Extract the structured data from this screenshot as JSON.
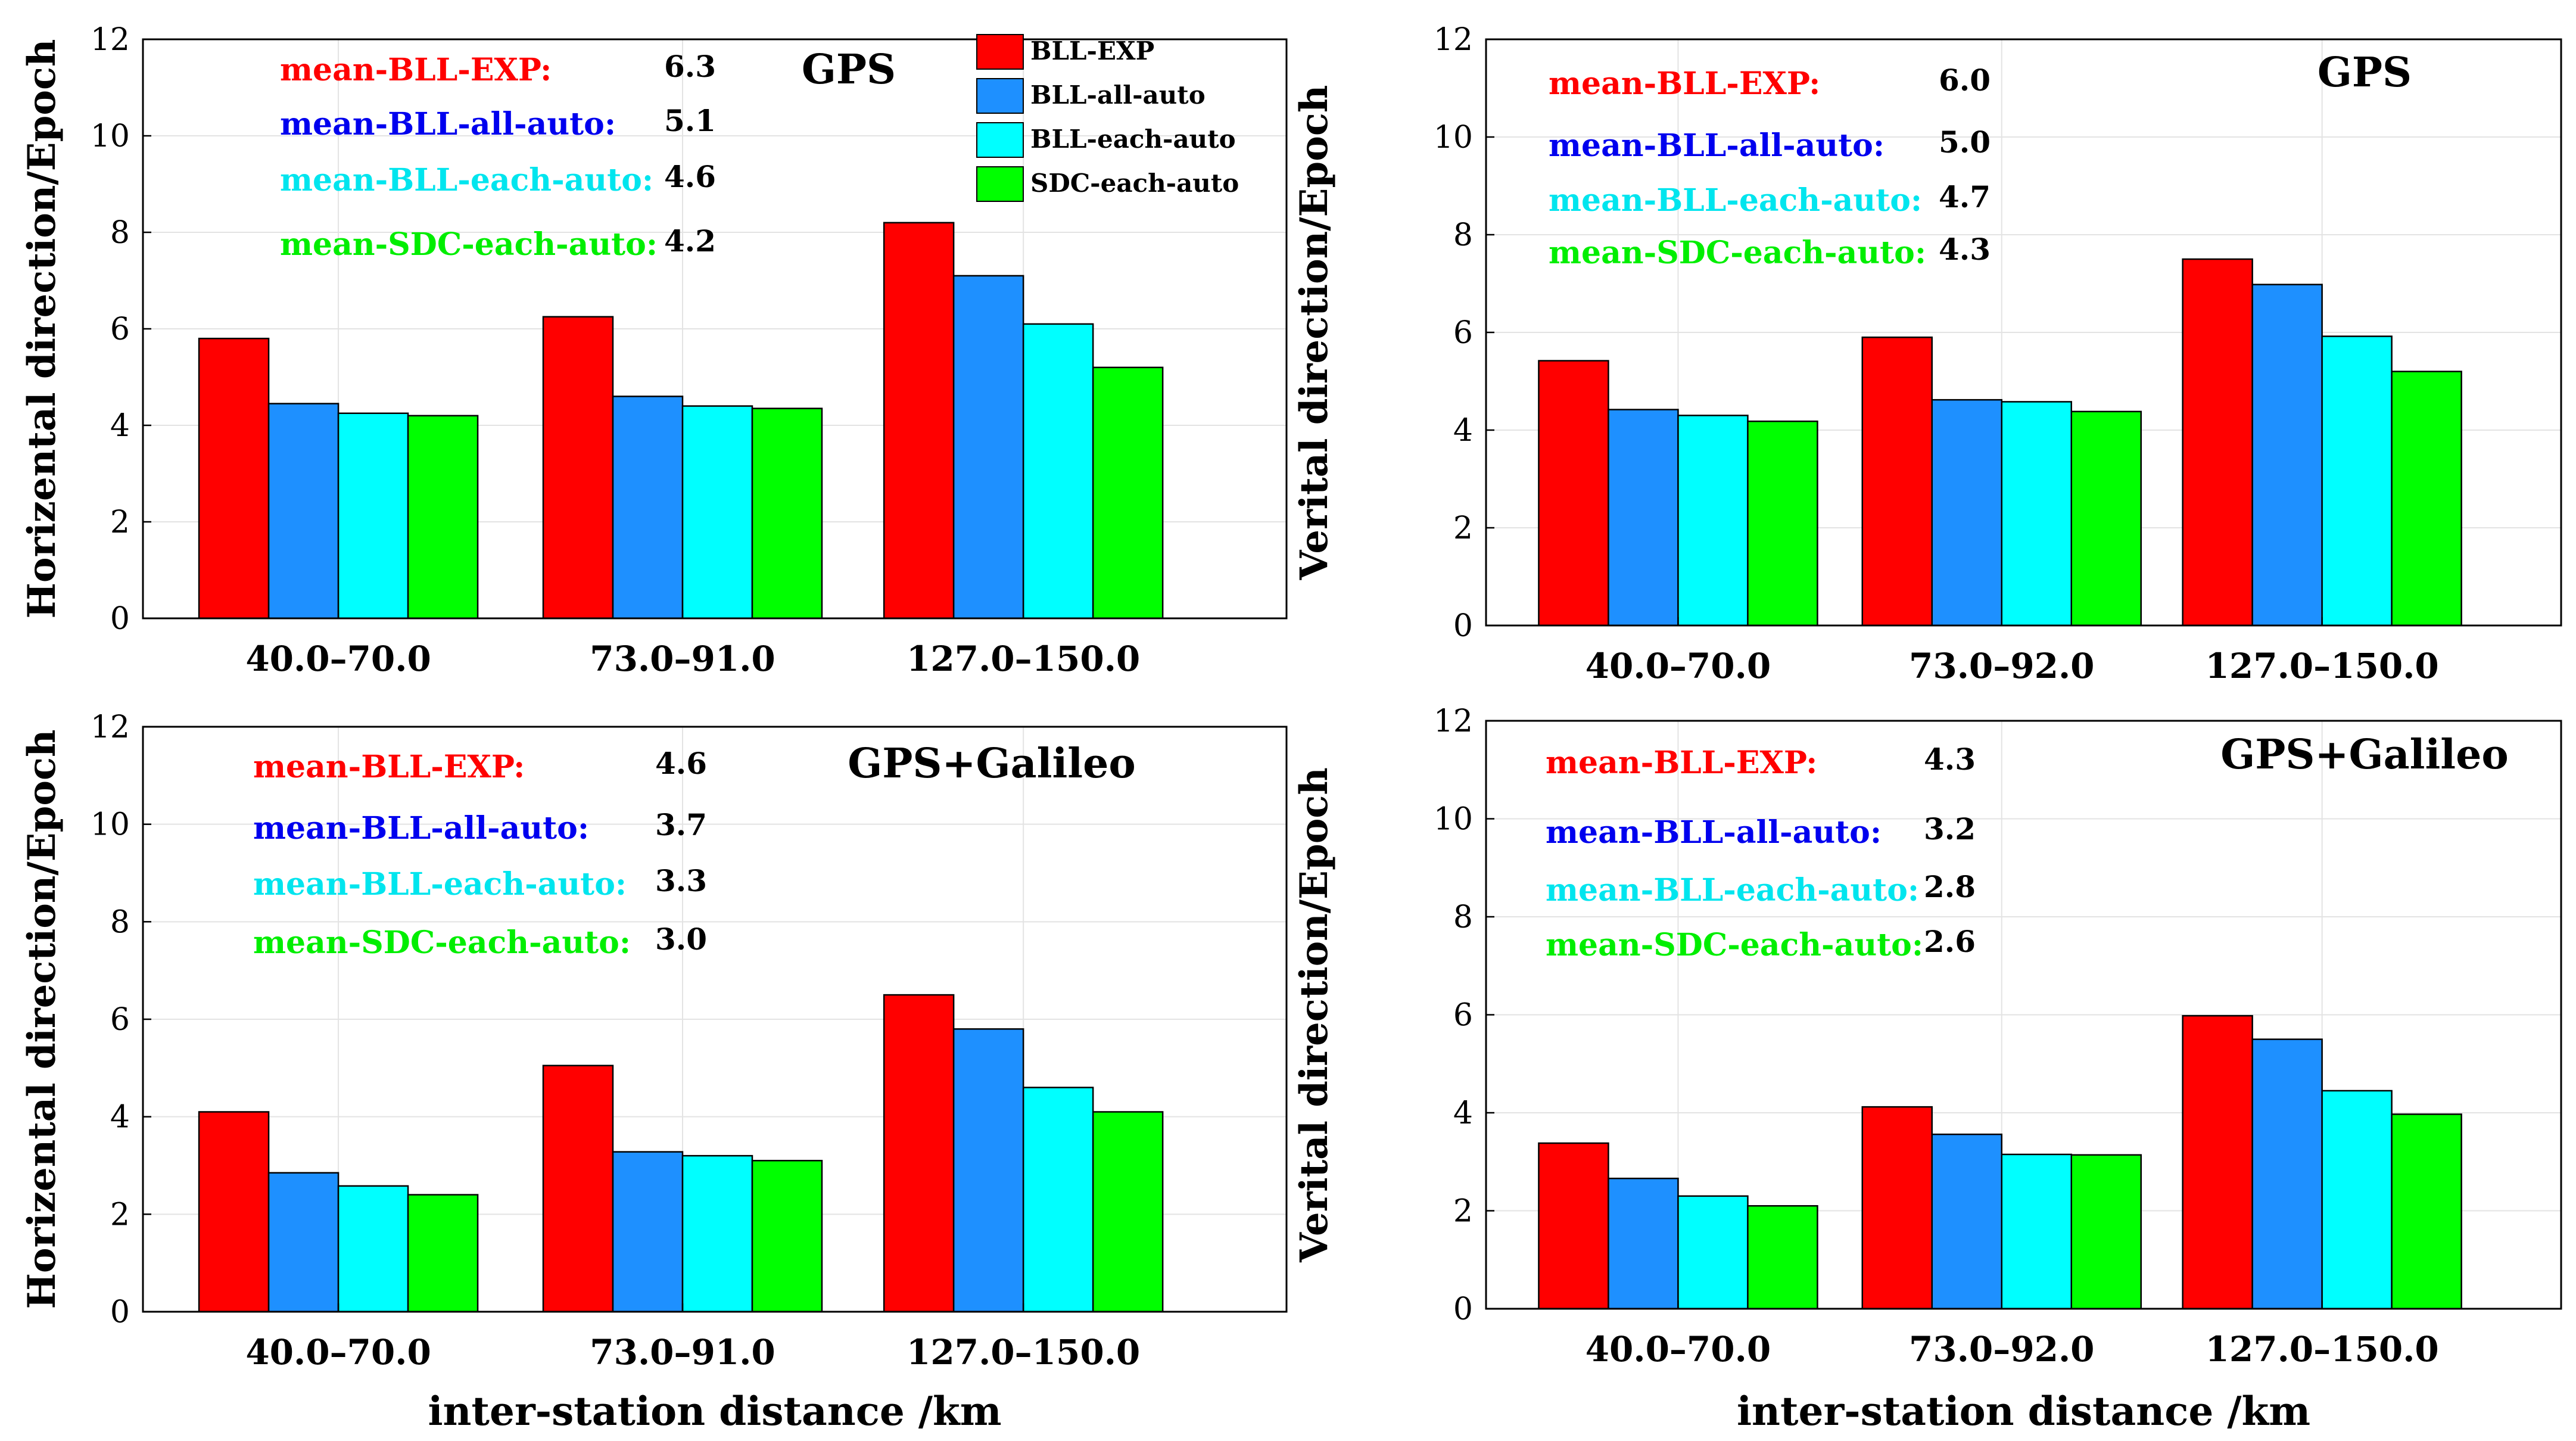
{
  "shared_xlabel": "inter-station distance /km",
  "legend": [
    {
      "label": "BLL-EXP",
      "color": "#ff0000"
    },
    {
      "label": "BLL-all-auto",
      "color": "#1e90ff"
    },
    {
      "label": "BLL-each-auto",
      "color": "#00ffff"
    },
    {
      "label": "SDC-each-auto",
      "color": "#00ff00"
    }
  ],
  "mean_colors": [
    "#ff0000",
    "#0000ee",
    "#00e5ee",
    "#00ee00"
  ],
  "chart_data": [
    {
      "type": "bar",
      "title": "GPS",
      "ylabel": "Horizental direction/Epoch",
      "xlabel": "",
      "ylim": [
        0,
        12
      ],
      "yticks": [
        "0",
        "2",
        "4",
        "6",
        "8",
        "10",
        "12"
      ],
      "categories": [
        "40.0–70.0",
        "73.0–91.0",
        "127.0–150.0"
      ],
      "series": [
        {
          "name": "BLL-EXP",
          "values": [
            5.8,
            6.25,
            8.2
          ]
        },
        {
          "name": "BLL-all-auto",
          "values": [
            4.45,
            4.6,
            7.1
          ]
        },
        {
          "name": "BLL-each-auto",
          "values": [
            4.25,
            4.4,
            6.1
          ]
        },
        {
          "name": "SDC-each-auto",
          "values": [
            4.2,
            4.35,
            5.2
          ]
        }
      ],
      "means": [
        {
          "label": "mean-BLL-EXP:",
          "value": "6.3"
        },
        {
          "label": "mean-BLL-all-auto:",
          "value": "5.1"
        },
        {
          "label": "mean-BLL-each-auto:",
          "value": "4.6"
        },
        {
          "label": "mean-SDC-each-auto:",
          "value": "4.2"
        }
      ]
    },
    {
      "type": "bar",
      "title": "GPS",
      "ylabel": "Verital direction/Epoch",
      "xlabel": "",
      "ylim": [
        0,
        12
      ],
      "yticks": [
        "0",
        "2",
        "4",
        "6",
        "8",
        "10",
        "12"
      ],
      "categories": [
        "40.0–70.0",
        "73.0–92.0",
        "127.0–150.0"
      ],
      "series": [
        {
          "name": "BLL-EXP",
          "values": [
            5.42,
            5.9,
            7.5
          ]
        },
        {
          "name": "BLL-all-auto",
          "values": [
            4.42,
            4.62,
            6.98
          ]
        },
        {
          "name": "BLL-each-auto",
          "values": [
            4.3,
            4.58,
            5.92
          ]
        },
        {
          "name": "SDC-each-auto",
          "values": [
            4.18,
            4.38,
            5.2
          ]
        }
      ],
      "means": [
        {
          "label": "mean-BLL-EXP:",
          "value": "6.0"
        },
        {
          "label": "mean-BLL-all-auto:",
          "value": "5.0"
        },
        {
          "label": "mean-BLL-each-auto:",
          "value": "4.7"
        },
        {
          "label": "mean-SDC-each-auto:",
          "value": "4.3"
        }
      ]
    },
    {
      "type": "bar",
      "title": "GPS+Galileo",
      "ylabel": "Horizental direction/Epoch",
      "xlabel": "inter-station distance /km",
      "ylim": [
        0,
        12
      ],
      "yticks": [
        "0",
        "2",
        "4",
        "6",
        "8",
        "10",
        "12"
      ],
      "categories": [
        "40.0–70.0",
        "73.0–91.0",
        "127.0–150.0"
      ],
      "series": [
        {
          "name": "BLL-EXP",
          "values": [
            4.1,
            5.05,
            6.5
          ]
        },
        {
          "name": "BLL-all-auto",
          "values": [
            2.85,
            3.28,
            5.8
          ]
        },
        {
          "name": "BLL-each-auto",
          "values": [
            2.58,
            3.2,
            4.6
          ]
        },
        {
          "name": "SDC-each-auto",
          "values": [
            2.4,
            3.1,
            4.1
          ]
        }
      ],
      "means": [
        {
          "label": "mean-BLL-EXP:",
          "value": "4.6"
        },
        {
          "label": "mean-BLL-all-auto:",
          "value": "3.7"
        },
        {
          "label": "mean-BLL-each-auto:",
          "value": "3.3"
        },
        {
          "label": "mean-SDC-each-auto:",
          "value": "3.0"
        }
      ]
    },
    {
      "type": "bar",
      "title": "GPS+Galileo",
      "ylabel": "Verital direction/Epoch",
      "xlabel": "inter-station distance /km",
      "ylim": [
        0,
        12
      ],
      "yticks": [
        "0",
        "2",
        "4",
        "6",
        "8",
        "10",
        "12"
      ],
      "categories": [
        "40.0–70.0",
        "73.0–92.0",
        "127.0–150.0"
      ],
      "series": [
        {
          "name": "BLL-EXP",
          "values": [
            3.38,
            4.12,
            5.98
          ]
        },
        {
          "name": "BLL-all-auto",
          "values": [
            2.66,
            3.56,
            5.5
          ]
        },
        {
          "name": "BLL-each-auto",
          "values": [
            2.3,
            3.15,
            4.45
          ]
        },
        {
          "name": "SDC-each-auto",
          "values": [
            2.1,
            3.14,
            3.97
          ]
        }
      ],
      "means": [
        {
          "label": "mean-BLL-EXP:",
          "value": "4.3"
        },
        {
          "label": "mean-BLL-all-auto:",
          "value": "3.2"
        },
        {
          "label": "mean-BLL-each-auto:",
          "value": "2.8"
        },
        {
          "label": "mean-SDC-each-auto:",
          "value": "2.6"
        }
      ]
    }
  ]
}
